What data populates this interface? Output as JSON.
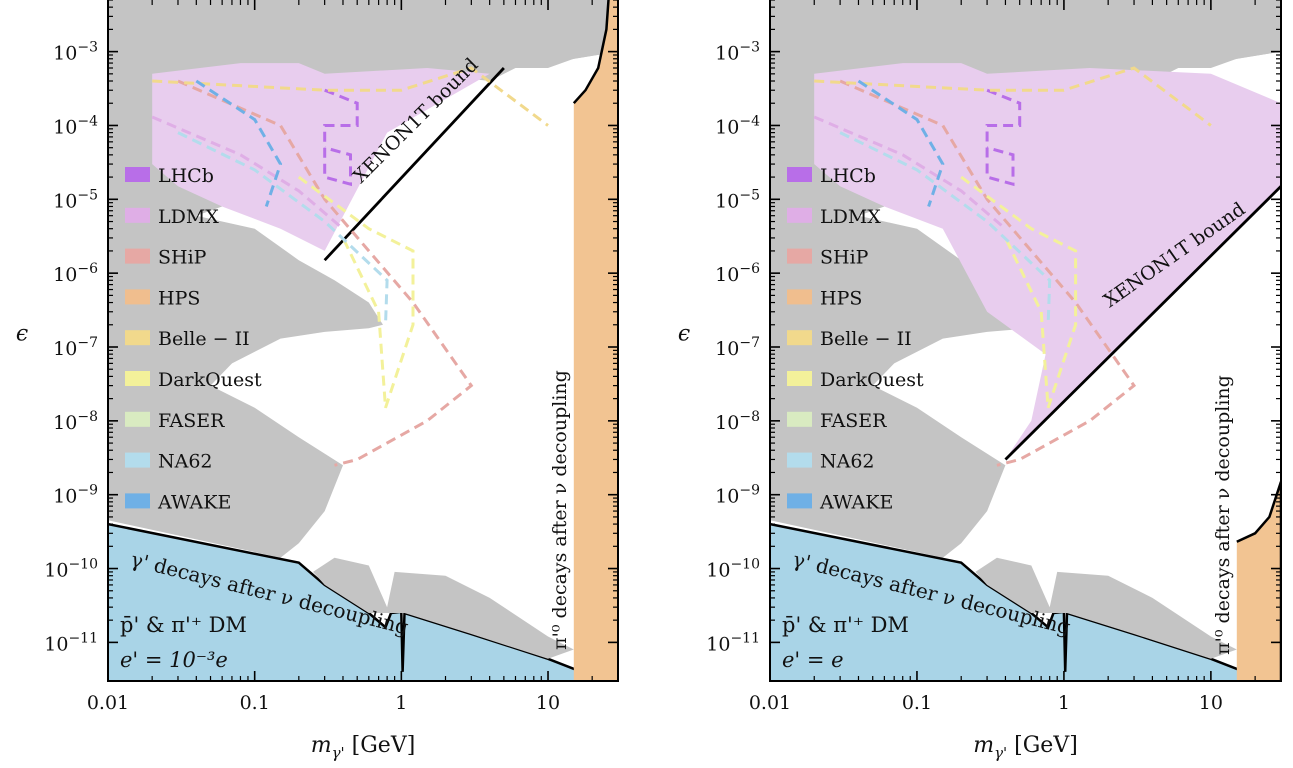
{
  "colors": {
    "gray_excluded": "#c4c4c4",
    "cosmology_blue": "#a9d4e7",
    "pion_orange": "#f2c492",
    "ldmx_fill": "#e8cdee",
    "bound_line": "#000000"
  },
  "chart_data": [
    {
      "type": "area",
      "xlabel": "m_{γ'} [GeV]",
      "ylabel": "ϵ",
      "xscale": "log",
      "yscale": "log",
      "xlim": [
        0.01,
        30
      ],
      "ylim": [
        3e-12,
        0.005
      ],
      "x_ticks": [
        "0.01",
        "0.1",
        "1",
        "10"
      ],
      "y_ticks": [
        "10^{-3}",
        "10^{-4}",
        "10^{-5}",
        "10^{-6}",
        "10^{-7}",
        "10^{-8}",
        "10^{-9}",
        "10^{-10}",
        "10^{-11}"
      ],
      "legend_position": "left",
      "legend": [
        {
          "name": "LHCb",
          "color": "#b86ee8"
        },
        {
          "name": "LDMX",
          "color": "#dfaee6"
        },
        {
          "name": "SHiP",
          "color": "#e6a8a4"
        },
        {
          "name": "HPS",
          "color": "#f0be8e"
        },
        {
          "name": "Belle − II",
          "color": "#f1d98c"
        },
        {
          "name": "DarkQuest",
          "color": "#f3f19a"
        },
        {
          "name": "FASER",
          "color": "#d9ebc1"
        },
        {
          "name": "NA62",
          "color": "#b3dcec"
        },
        {
          "name": "AWAKE",
          "color": "#6fb0e6"
        }
      ],
      "annotations": {
        "xenon": "XENON1T bound",
        "gamma_decouple": "γ' decays after ν decoupling",
        "pion_decouple": "π'⁰ decays after ν decoupling",
        "dm_line": "p̄' & π'⁺ DM",
        "coupling": "e' = 10⁻³e"
      },
      "xenon_line": [
        [
          0.3,
          1.5e-06
        ],
        [
          5,
          0.0006
        ]
      ],
      "gamma_decouple_line": [
        [
          0.01,
          4e-10
        ],
        [
          0.2,
          1.2e-10
        ],
        [
          0.8,
          1.8e-11
        ]
      ],
      "pion_bound_x": 15
    },
    {
      "type": "area",
      "xlabel": "m_{γ'} [GeV]",
      "ylabel": "ϵ",
      "xscale": "log",
      "yscale": "log",
      "xlim": [
        0.01,
        30
      ],
      "ylim": [
        3e-12,
        0.005
      ],
      "x_ticks": [
        "0.01",
        "0.1",
        "1",
        "10"
      ],
      "y_ticks": [
        "10^{-3}",
        "10^{-4}",
        "10^{-5}",
        "10^{-6}",
        "10^{-7}",
        "10^{-8}",
        "10^{-9}",
        "10^{-10}",
        "10^{-11}"
      ],
      "legend_position": "left",
      "legend": [
        {
          "name": "LHCb",
          "color": "#b86ee8"
        },
        {
          "name": "LDMX",
          "color": "#dfaee6"
        },
        {
          "name": "SHiP",
          "color": "#e6a8a4"
        },
        {
          "name": "HPS",
          "color": "#f0be8e"
        },
        {
          "name": "Belle − II",
          "color": "#f1d98c"
        },
        {
          "name": "DarkQuest",
          "color": "#f3f19a"
        },
        {
          "name": "FASER",
          "color": "#d9ebc1"
        },
        {
          "name": "NA62",
          "color": "#b3dcec"
        },
        {
          "name": "AWAKE",
          "color": "#6fb0e6"
        }
      ],
      "annotations": {
        "xenon": "XENON1T bound",
        "gamma_decouple": "γ' decays after ν decoupling",
        "pion_decouple": "π'⁰ decays after ν decoupling",
        "dm_line": "p̄' & π'⁺ DM",
        "coupling": "e' = e"
      },
      "xenon_line": [
        [
          0.4,
          3e-09
        ],
        [
          30,
          1.5e-05
        ]
      ],
      "gamma_decouple_line": [
        [
          0.01,
          4e-10
        ],
        [
          0.2,
          1.2e-10
        ],
        [
          0.8,
          1.8e-11
        ]
      ],
      "pion_bound_x": 15
    }
  ]
}
